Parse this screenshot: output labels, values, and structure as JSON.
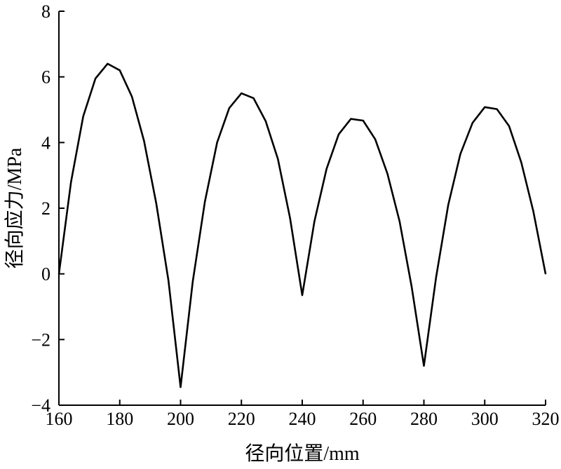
{
  "chart_data": {
    "type": "line",
    "title": "",
    "xlabel": "径向位置/mm",
    "ylabel": "径向应力/MPa",
    "xlim": [
      160,
      320
    ],
    "ylim": [
      -4,
      8
    ],
    "xticks": [
      "160",
      "180",
      "200",
      "220",
      "240",
      "260",
      "280",
      "300",
      "320"
    ],
    "yticks": [
      "−4",
      "−2",
      "0",
      "2",
      "4",
      "6",
      "8"
    ],
    "grid": false,
    "line_color": "#000000",
    "series": [
      {
        "x": [
          160,
          164,
          168,
          172,
          176,
          180,
          184,
          188,
          192,
          196,
          200,
          204,
          208,
          212,
          216,
          220,
          224,
          228,
          232,
          236,
          240,
          244,
          248,
          252,
          256,
          260,
          264,
          268,
          272,
          276,
          280,
          284,
          288,
          292,
          296,
          300,
          304,
          308,
          312,
          316,
          320
        ],
        "y": [
          0,
          2.8,
          4.8,
          5.95,
          6.4,
          6.2,
          5.4,
          4.05,
          2.15,
          -0.2,
          -3.45,
          -0.23,
          2.2,
          4.0,
          5.05,
          5.5,
          5.35,
          4.65,
          3.5,
          1.7,
          -0.65,
          1.6,
          3.2,
          4.25,
          4.72,
          4.67,
          4.1,
          3.05,
          1.6,
          -0.4,
          -2.8,
          -0.1,
          2.1,
          3.65,
          4.6,
          5.08,
          5.02,
          4.5,
          3.4,
          1.9,
          0
        ]
      }
    ]
  }
}
